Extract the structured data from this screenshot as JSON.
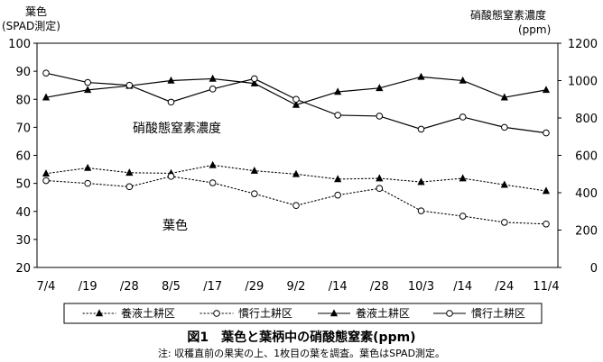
{
  "chart_data": {
    "type": "line",
    "categories": [
      "7/4",
      "/19",
      "/28",
      "8/5",
      "/17",
      "/29",
      "9/2",
      "/14",
      "/28",
      "10/3",
      "/14",
      "/24",
      "11/4"
    ],
    "y_left": {
      "title_line1": "葉色",
      "title_line2": "(SPAD測定)",
      "ylim": [
        20,
        100
      ],
      "ticks": [
        20,
        30,
        40,
        50,
        60,
        70,
        80,
        90,
        100
      ]
    },
    "y_right": {
      "title_line1": "硝酸態窒素濃度",
      "title_line2": "(ppm)",
      "ylim": [
        0,
        1200
      ],
      "ticks": [
        0,
        200,
        400,
        600,
        800,
        1000,
        1200
      ]
    },
    "series": [
      {
        "name": "養液土耕区",
        "axis": "left",
        "line": "dotted",
        "marker": "triangle",
        "values": [
          53.5,
          55.5,
          53.8,
          53.6,
          56.5,
          54.5,
          53.3,
          51.5,
          51.8,
          50.5,
          51.8,
          49.5,
          47.3
        ]
      },
      {
        "name": "慣行土耕区",
        "axis": "left",
        "line": "dotted",
        "marker": "circle",
        "values": [
          51.0,
          50.0,
          48.8,
          52.5,
          50.2,
          46.3,
          42.1,
          45.8,
          48.2,
          40.2,
          38.3,
          36.1,
          35.5
        ]
      },
      {
        "name": "養液土耕区",
        "axis": "right",
        "line": "solid",
        "marker": "triangle",
        "values": [
          910,
          950,
          972,
          1000,
          1010,
          985,
          870,
          940,
          960,
          1020,
          1000,
          910,
          950
        ]
      },
      {
        "name": "慣行土耕区",
        "axis": "right",
        "line": "solid",
        "marker": "circle",
        "values": [
          1040,
          990,
          975,
          885,
          955,
          1010,
          900,
          815,
          810,
          740,
          805,
          750,
          720
        ]
      }
    ],
    "annotations": {
      "nitrate": "硝酸態窒素濃度",
      "leaf": "葉色"
    },
    "legend_position": "bottom",
    "grid": false
  },
  "caption": "図1　葉色と葉柄中の硝酸態窒素(ppm)",
  "note": "注: 収穫直前の果実の上、1枚目の葉を調査。葉色はSPAD測定。"
}
